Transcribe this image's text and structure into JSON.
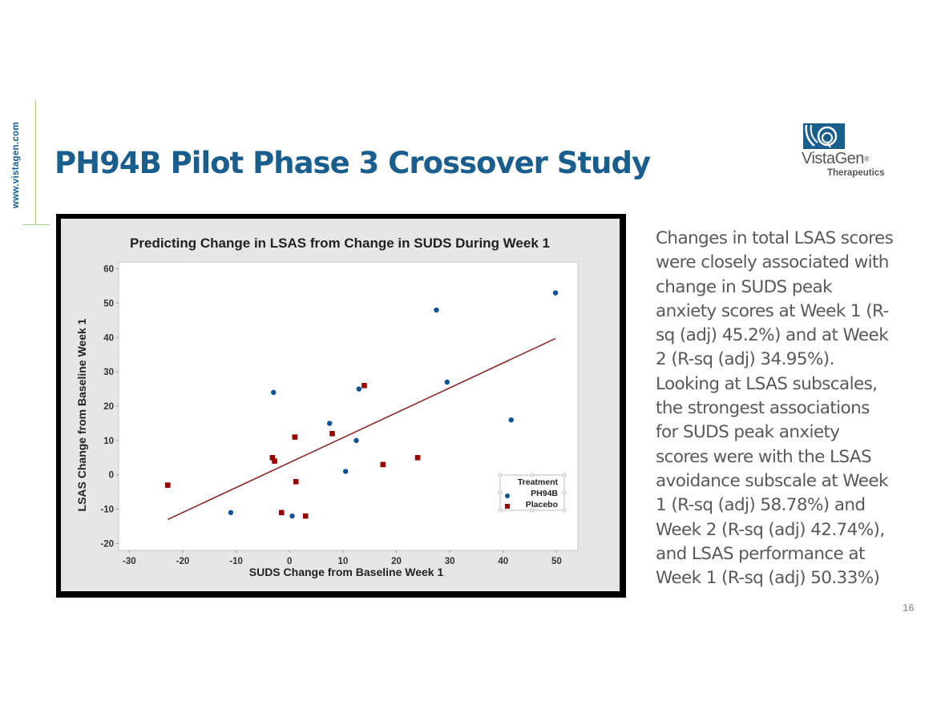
{
  "sidebar": {
    "url": "www.vistagen.com"
  },
  "header": {
    "title": "PH94B Pilot Phase 3 Crossover Study"
  },
  "logo": {
    "name": "VistaGen",
    "registered": "®",
    "subtitle": "Therapeutics",
    "icon": "vistagen-logo-icon",
    "brand_color": "#1a5e8e"
  },
  "body_text": {
    "lines": [
      "Changes in total LSAS scores",
      "were closely associated with",
      "change in SUDS peak",
      "anxiety scores at Week 1 (R-",
      "sq (adj) 45.2%) and at Week",
      "2 (R-sq (adj) 34.95%).",
      "Looking at LSAS subscales,",
      "the strongest associations",
      "for SUDS peak anxiety",
      "scores were with the LSAS",
      "avoidance subscale at Week",
      "1 (R-sq (adj) 58.78%) and",
      "Week 2 (R-sq (adj) 42.74%),",
      "and LSAS performance at",
      "Week 1 (R-sq (adj) 50.33%)"
    ]
  },
  "page_number": "16",
  "chart_data": {
    "type": "scatter",
    "title": "Predicting Change in LSAS from Change in SUDS During Week 1",
    "xlabel": "SUDS Change from Baseline Week 1",
    "ylabel": "LSAS Change from Baseline Week 1",
    "xlim": [
      -32,
      54
    ],
    "ylim": [
      -22,
      62
    ],
    "xticks": [
      -30,
      -20,
      -10,
      0,
      10,
      20,
      30,
      40,
      50
    ],
    "yticks": [
      -20,
      -10,
      0,
      10,
      20,
      30,
      40,
      50,
      60
    ],
    "grid": false,
    "legend": {
      "title": "Treatment",
      "placement": "bottom-right"
    },
    "series": [
      {
        "name": "PH94B",
        "marker": "circle",
        "color": "#0b5394",
        "points": [
          [
            -11,
            -11
          ],
          [
            -3,
            24
          ],
          [
            0.5,
            -12
          ],
          [
            7.5,
            15
          ],
          [
            10.5,
            1
          ],
          [
            12.5,
            10
          ],
          [
            13,
            25
          ],
          [
            27.5,
            48
          ],
          [
            29.5,
            27
          ],
          [
            41.5,
            16
          ],
          [
            49.8,
            53
          ]
        ]
      },
      {
        "name": "Placebo",
        "marker": "square",
        "color": "#990000",
        "points": [
          [
            -22.8,
            -3
          ],
          [
            -3.2,
            5
          ],
          [
            -2.8,
            4
          ],
          [
            -1.5,
            -11
          ],
          [
            1,
            11
          ],
          [
            1.2,
            -2
          ],
          [
            3,
            -12
          ],
          [
            8,
            12
          ],
          [
            14,
            26
          ],
          [
            17.5,
            3
          ],
          [
            24,
            5
          ]
        ]
      }
    ],
    "fit_line": {
      "name": "Regression fit",
      "color": "#8b2b2b",
      "points": [
        [
          -22.8,
          -13
        ],
        [
          49.8,
          39.7
        ]
      ]
    }
  }
}
